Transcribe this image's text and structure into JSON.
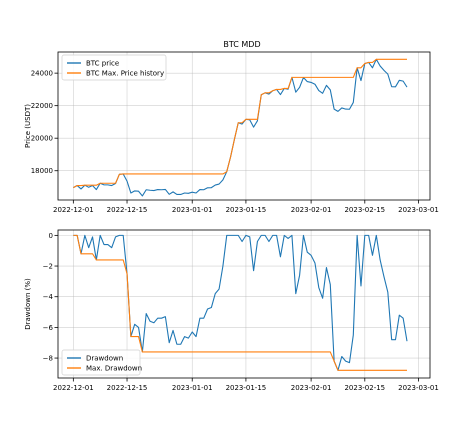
{
  "chart_data": [
    {
      "type": "line",
      "title": "BTC MDD",
      "xlabel": "",
      "ylabel": "Price (USDT)",
      "x_start": "2022-12-01",
      "x_end": "2023-02-28",
      "xlim": [
        "2022-11-27",
        "2023-03-04"
      ],
      "ylim": [
        16200,
        25300
      ],
      "xticks": [
        "2022-12-01",
        "2022-12-15",
        "2023-01-01",
        "2023-01-15",
        "2023-02-01",
        "2023-02-15",
        "2023-03-01"
      ],
      "yticks": [
        18000,
        20000,
        22000,
        24000
      ],
      "grid": true,
      "legend": "top-left",
      "series": [
        {
          "name": "BTC price",
          "color": "#1f77b4",
          "values": [
            16960,
            17090,
            16880,
            17110,
            16980,
            17090,
            16840,
            17230,
            17130,
            17130,
            17090,
            17210,
            17780,
            17800,
            17360,
            16630,
            16760,
            16740,
            16450,
            16830,
            16800,
            16780,
            16840,
            16830,
            16850,
            16550,
            16700,
            16540,
            16540,
            16630,
            16610,
            16680,
            16630,
            16840,
            16830,
            16950,
            16960,
            17120,
            17180,
            17440,
            17940,
            18850,
            19930,
            20950,
            20870,
            21160,
            21130,
            20680,
            21070,
            22670,
            22790,
            22710,
            22920,
            23000,
            22680,
            23060,
            23010,
            23740,
            22830,
            23130,
            23730,
            23480,
            23430,
            23320,
            22930,
            22760,
            23250,
            22970,
            21790,
            21650,
            21860,
            21790,
            21780,
            22200,
            24330,
            23540,
            24590,
            24660,
            24330,
            24850,
            24440,
            24170,
            23940,
            23170,
            23160,
            23560,
            23510,
            23140
          ]
        },
        {
          "name": "BTC Max. Price history",
          "color": "#ff7f0e",
          "values": [
            16960,
            17090,
            17090,
            17110,
            17110,
            17110,
            17110,
            17230,
            17230,
            17230,
            17230,
            17230,
            17780,
            17800,
            17800,
            17800,
            17800,
            17800,
            17800,
            17800,
            17800,
            17800,
            17800,
            17800,
            17800,
            17800,
            17800,
            17800,
            17800,
            17800,
            17800,
            17800,
            17800,
            17800,
            17800,
            17800,
            17800,
            17800,
            17800,
            17800,
            17940,
            18850,
            19930,
            20950,
            20950,
            21160,
            21160,
            21160,
            21160,
            22670,
            22790,
            22790,
            22920,
            23000,
            23000,
            23060,
            23060,
            23740,
            23740,
            23740,
            23740,
            23740,
            23740,
            23740,
            23740,
            23740,
            23740,
            23740,
            23740,
            23740,
            23740,
            23740,
            23740,
            23740,
            24330,
            24330,
            24590,
            24660,
            24660,
            24850,
            24850,
            24850,
            24850,
            24850,
            24850,
            24850,
            24850,
            24850
          ]
        }
      ]
    },
    {
      "type": "line",
      "title": "",
      "xlabel": "",
      "ylabel": "Drawdown (%)",
      "x_start": "2022-12-01",
      "x_end": "2023-02-28",
      "xlim": [
        "2022-11-27",
        "2023-03-04"
      ],
      "ylim": [
        -9.3,
        0.35
      ],
      "xticks": [
        "2022-12-01",
        "2022-12-15",
        "2023-01-01",
        "2023-01-15",
        "2023-02-01",
        "2023-02-15",
        "2023-03-01"
      ],
      "yticks": [
        0,
        -2,
        -4,
        -6,
        -8
      ],
      "grid": true,
      "legend": "bottom-left",
      "series": [
        {
          "name": "Drawdown",
          "color": "#1f77b4",
          "values": [
            0,
            0,
            -1.2,
            0,
            -0.8,
            -0.1,
            -1.6,
            0,
            -0.6,
            -0.6,
            -0.8,
            -0.1,
            0,
            0,
            -2.5,
            -6.6,
            -5.8,
            -6.0,
            -7.6,
            -5.1,
            -5.6,
            -5.7,
            -5.4,
            -5.4,
            -5.3,
            -7.0,
            -6.2,
            -7.1,
            -7.1,
            -6.6,
            -6.7,
            -6.3,
            -6.6,
            -5.4,
            -5.4,
            -4.8,
            -4.7,
            -3.8,
            -3.5,
            -2.0,
            0,
            0,
            0,
            0,
            -0.4,
            0,
            -0.1,
            -2.3,
            -0.4,
            0,
            0,
            -0.4,
            0,
            0,
            -1.4,
            0,
            -0.2,
            0,
            -3.8,
            -2.6,
            0,
            -1.1,
            -1.3,
            -1.8,
            -3.4,
            -4.1,
            -2.1,
            -3.2,
            -8.2,
            -8.8,
            -7.9,
            -8.2,
            -8.3,
            -6.5,
            0,
            -3.3,
            0,
            0,
            -1.3,
            0,
            -1.6,
            -2.7,
            -3.7,
            -6.8,
            -6.8,
            -5.2,
            -5.4,
            -6.9
          ]
        },
        {
          "name": "Max. Drawdown",
          "color": "#ff7f0e",
          "values": [
            0,
            0,
            -1.2,
            -1.2,
            -1.2,
            -1.2,
            -1.6,
            -1.6,
            -1.6,
            -1.6,
            -1.6,
            -1.6,
            -1.6,
            -1.6,
            -2.5,
            -6.6,
            -6.6,
            -6.6,
            -7.6,
            -7.6,
            -7.6,
            -7.6,
            -7.6,
            -7.6,
            -7.6,
            -7.6,
            -7.6,
            -7.6,
            -7.6,
            -7.6,
            -7.6,
            -7.6,
            -7.6,
            -7.6,
            -7.6,
            -7.6,
            -7.6,
            -7.6,
            -7.6,
            -7.6,
            -7.6,
            -7.6,
            -7.6,
            -7.6,
            -7.6,
            -7.6,
            -7.6,
            -7.6,
            -7.6,
            -7.6,
            -7.6,
            -7.6,
            -7.6,
            -7.6,
            -7.6,
            -7.6,
            -7.6,
            -7.6,
            -7.6,
            -7.6,
            -7.6,
            -7.6,
            -7.6,
            -7.6,
            -7.6,
            -7.6,
            -7.6,
            -7.6,
            -8.2,
            -8.8,
            -8.8,
            -8.8,
            -8.8,
            -8.8,
            -8.8,
            -8.8,
            -8.8,
            -8.8,
            -8.8,
            -8.8,
            -8.8,
            -8.8,
            -8.8,
            -8.8,
            -8.8,
            -8.8,
            -8.8,
            -8.8
          ]
        }
      ]
    }
  ]
}
